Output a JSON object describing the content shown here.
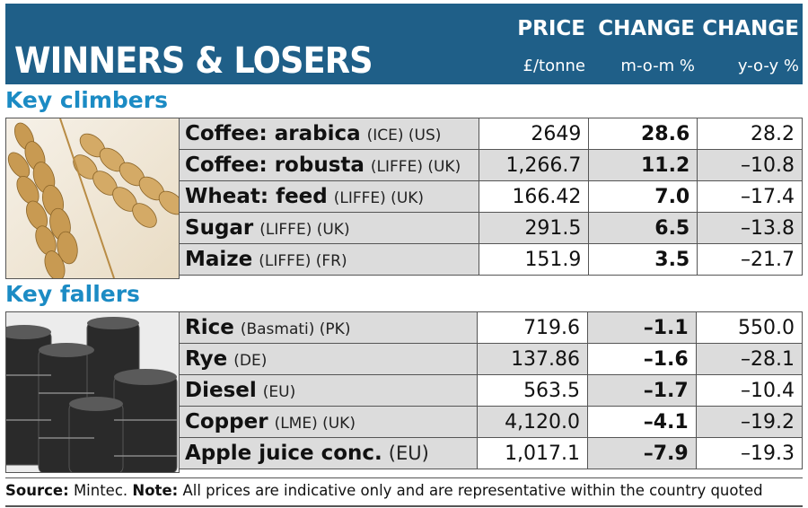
{
  "header": {
    "title": "WINNERS & LOSERS",
    "columns": [
      {
        "heading": "PRICE",
        "unit": "£/tonne"
      },
      {
        "heading": "CHANGE",
        "unit": "m-o-m %"
      },
      {
        "heading": "CHANGE",
        "unit": "y-o-y %"
      }
    ]
  },
  "climbers": {
    "title": "Key climbers",
    "image": "wheat-ears-photo",
    "rows": [
      {
        "name": "Coffee: arabica",
        "qualifier": "(ICE) (US)",
        "price": "2649",
        "mom": "28.6",
        "yoy": "28.2"
      },
      {
        "name": "Coffee: robusta",
        "qualifier": "(LIFFE) (UK)",
        "price": "1,266.7",
        "mom": "11.2",
        "yoy": "–10.8"
      },
      {
        "name": "Wheat: feed",
        "qualifier": "(LIFFE) (UK)",
        "price": "166.42",
        "mom": "7.0",
        "yoy": "–17.4"
      },
      {
        "name": "Sugar",
        "qualifier": "(LIFFE) (UK)",
        "price": "291.5",
        "mom": "6.5",
        "yoy": "–13.8"
      },
      {
        "name": "Maize",
        "qualifier": "(LIFFE) (FR)",
        "price": "151.9",
        "mom": "3.5",
        "yoy": "–21.7"
      }
    ]
  },
  "fallers": {
    "title": "Key fallers",
    "image": "oil-barrels-photo",
    "rows": [
      {
        "name": "Rice",
        "qualifier": "(Basmati) (PK)",
        "price": "719.6",
        "mom": "–1.1",
        "yoy": "550.0"
      },
      {
        "name": "Rye",
        "qualifier": "(DE)",
        "price": "137.86",
        "mom": "–1.6",
        "yoy": "–28.1"
      },
      {
        "name": "Diesel",
        "qualifier": "(EU)",
        "price": "563.5",
        "mom": "–1.7",
        "yoy": "–10.4"
      },
      {
        "name": "Copper",
        "qualifier": "(LME) (UK)",
        "price": "4,120.0",
        "mom": "–4.1",
        "yoy": "–19.2"
      },
      {
        "name": "Apple juice conc.",
        "qualifier": "(EU)",
        "price": "1,017.1",
        "mom": "–7.9",
        "yoy": "–19.3"
      }
    ]
  },
  "footer": {
    "source_label": "Source:",
    "source": "Mintec.",
    "note_label": "Note:",
    "note": "All prices are indicative only and are representative within the country quoted"
  },
  "colors": {
    "header_bg": "#1f5f88",
    "section_title": "#1b8bc4",
    "name_cell_bg": "#dcdcdc"
  }
}
